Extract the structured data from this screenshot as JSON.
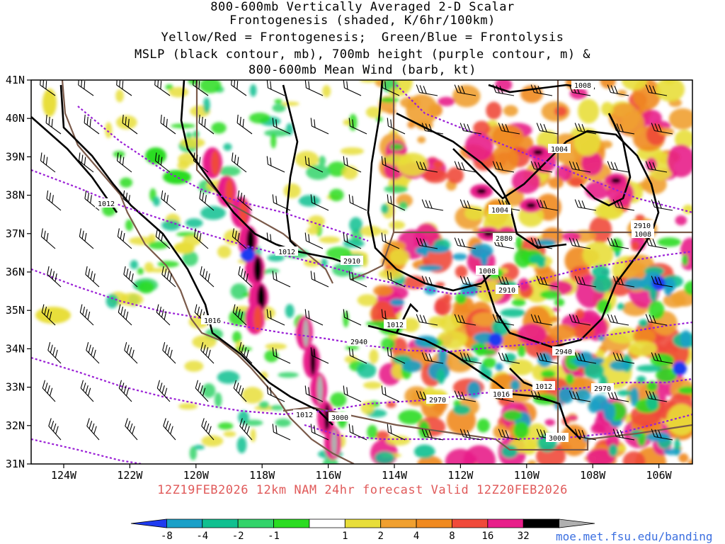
{
  "title": {
    "lines": [
      "800-600mb Vertically Averaged 2-D Scalar",
      "Frontogenesis (shaded, K/6hr/100km)",
      "Yellow/Red = Frontogenesis;  Green/Blue = Frontolysis",
      "MSLP (black contour, mb), 700mb height (purple contour, m) &",
      "800-600mb Mean Wind (barb, kt)"
    ]
  },
  "valid_line": "12Z19FEB2026 12km NAM 24hr forecast Valid 12Z20FEB2026",
  "credit": "moe.met.fsu.edu/banding",
  "colors": {
    "valid_text": "#e05a5a",
    "mslp_contour": "#000000",
    "height_contour": "#9a1fd6",
    "state_borders": "#7a5a4a"
  },
  "map": {
    "lon_range": [
      -125,
      -105
    ],
    "lat_range": [
      31,
      41
    ],
    "lat_labels": [
      "41N",
      "40N",
      "39N",
      "38N",
      "37N",
      "36N",
      "35N",
      "34N",
      "33N",
      "32N",
      "31N"
    ],
    "lon_labels": [
      "124W",
      "122W",
      "120W",
      "118W",
      "116W",
      "114W",
      "112W",
      "110W",
      "108W",
      "106W"
    ],
    "mslp_labels": [
      "1008",
      "1004",
      "1004",
      "1012",
      "1008",
      "1008",
      "1012",
      "1016",
      "1016",
      "1012",
      "1012",
      "1012"
    ],
    "height_labels": [
      "2880",
      "2910",
      "2910",
      "2910",
      "2940",
      "2940",
      "2970",
      "2970",
      "3000",
      "3000"
    ]
  },
  "colorbar": {
    "labels": [
      "-8",
      "-4",
      "-2",
      "-1",
      "1",
      "2",
      "4",
      "8",
      "16",
      "32"
    ],
    "colors": [
      "#1f3bf0",
      "#1aa0c8",
      "#10c090",
      "#33d36a",
      "#2bdc22",
      "#ffffff",
      "#e8de3a",
      "#f0a030",
      "#f08a20",
      "#f04a3a",
      "#e81e8a",
      "#000000",
      "#b0b0b0"
    ]
  }
}
